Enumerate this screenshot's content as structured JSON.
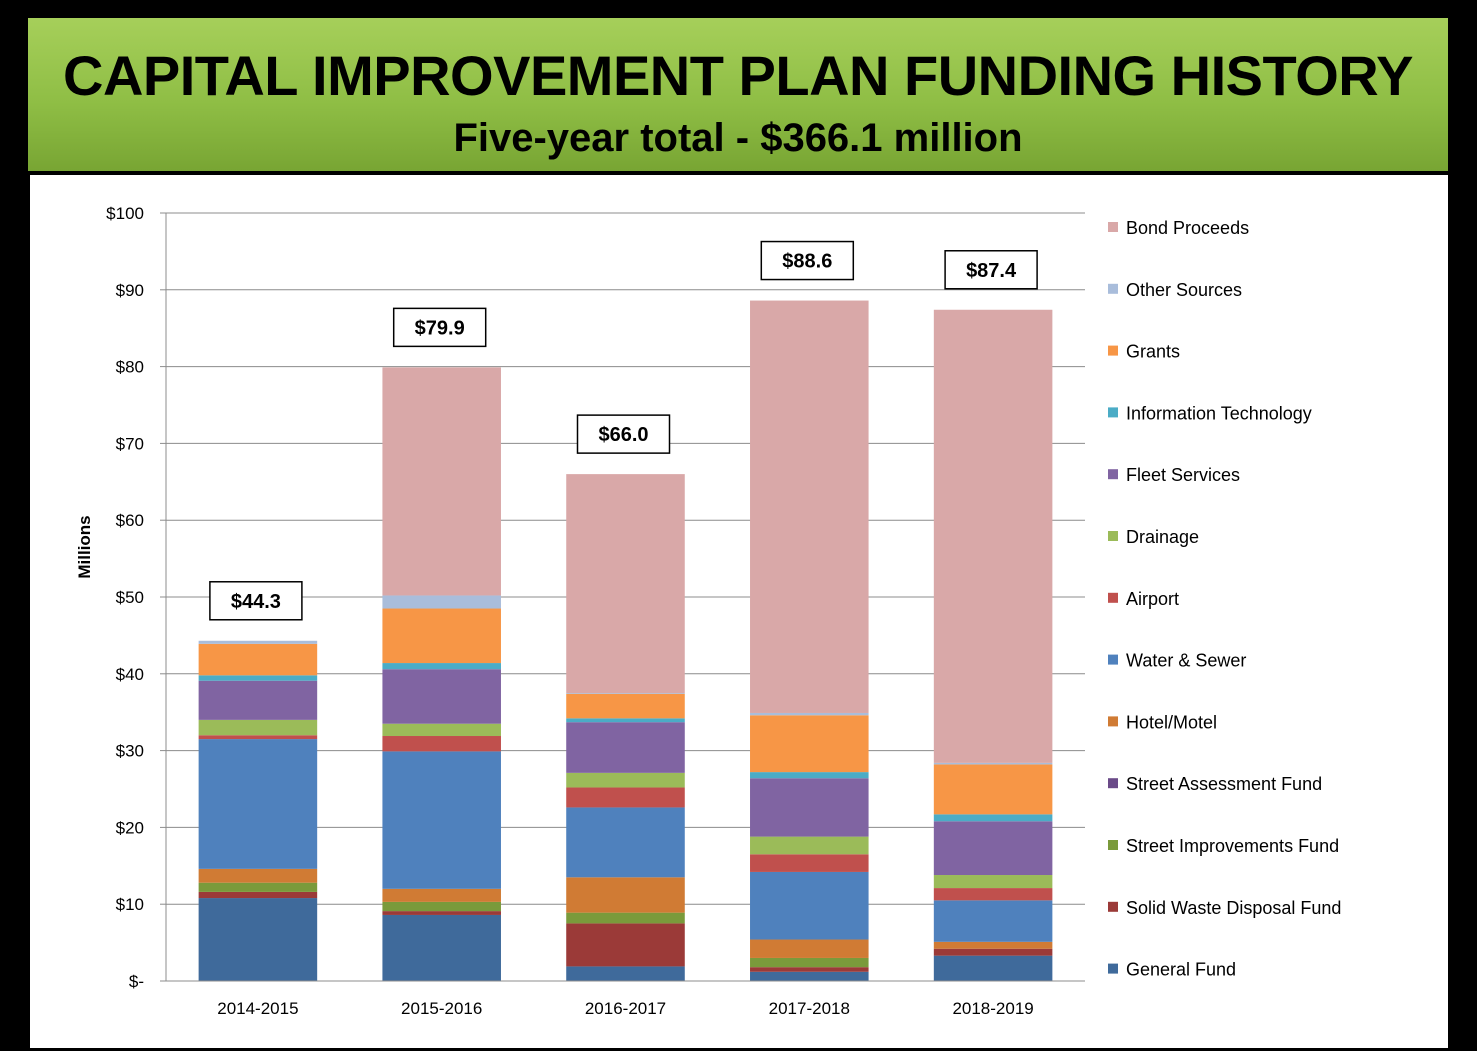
{
  "chart_data": {
    "type": "bar",
    "stacked": true,
    "title": "CAPITAL IMPROVEMENT PLAN FUNDING HISTORY",
    "subtitle": "Five-year total - $366.1 million",
    "xlabel": "",
    "ylabel": "Millions",
    "ylim": [
      0,
      100
    ],
    "yticks": [
      0,
      10,
      20,
      30,
      40,
      50,
      60,
      70,
      80,
      90,
      100
    ],
    "ytick_labels": [
      "$-",
      "$10",
      "$20",
      "$30",
      "$40",
      "$50",
      "$60",
      "$70",
      "$80",
      "$90",
      "$100"
    ],
    "grid": true,
    "legend_position": "right",
    "categories": [
      "2014-2015",
      "2015-2016",
      "2016-2017",
      "2017-2018",
      "2018-2019"
    ],
    "totals": [
      44.3,
      79.9,
      66.0,
      88.6,
      87.4
    ],
    "total_labels": [
      "$44.3",
      "$79.9",
      "$66.0",
      "$88.6",
      "$87.4"
    ],
    "series": [
      {
        "name": "General Fund",
        "color": "#3f6a9b",
        "values": [
          10.8,
          8.6,
          1.9,
          1.2,
          3.3
        ]
      },
      {
        "name": "Solid Waste Disposal Fund",
        "color": "#9b3a38",
        "values": [
          0.8,
          0.5,
          5.6,
          0.6,
          0.9
        ]
      },
      {
        "name": "Street Improvements Fund",
        "color": "#7a9a3b",
        "values": [
          1.2,
          1.2,
          1.4,
          1.2,
          0.0
        ]
      },
      {
        "name": "Street Assessment Fund",
        "color": "#6a4a88",
        "values": [
          0.0,
          0.0,
          0.0,
          0.0,
          0.0
        ]
      },
      {
        "name": "Hotel/Motel",
        "color": "#d07b34",
        "values": [
          1.8,
          1.7,
          4.6,
          2.4,
          0.9
        ]
      },
      {
        "name": "Water & Sewer",
        "color": "#4f81bd",
        "values": [
          16.9,
          17.9,
          9.1,
          8.8,
          5.4
        ]
      },
      {
        "name": "Airport",
        "color": "#c0504d",
        "values": [
          0.5,
          2.0,
          2.6,
          2.3,
          1.6
        ]
      },
      {
        "name": "Drainage",
        "color": "#9bbb59",
        "values": [
          2.0,
          1.6,
          1.9,
          2.3,
          1.7
        ]
      },
      {
        "name": "Fleet Services",
        "color": "#8064a2",
        "values": [
          5.1,
          7.1,
          6.6,
          7.6,
          7.0
        ]
      },
      {
        "name": "Information Technology",
        "color": "#4bacc6",
        "values": [
          0.7,
          0.8,
          0.5,
          0.8,
          0.9
        ]
      },
      {
        "name": "Grants",
        "color": "#f79646",
        "values": [
          4.1,
          7.1,
          3.2,
          7.4,
          6.5
        ]
      },
      {
        "name": "Other Sources",
        "color": "#a9bddb",
        "values": [
          0.4,
          1.7,
          0.1,
          0.3,
          0.2
        ]
      },
      {
        "name": "Bond Proceeds",
        "color": "#d9a8a8",
        "values": [
          0.0,
          29.7,
          28.5,
          53.7,
          59.0
        ]
      }
    ]
  }
}
